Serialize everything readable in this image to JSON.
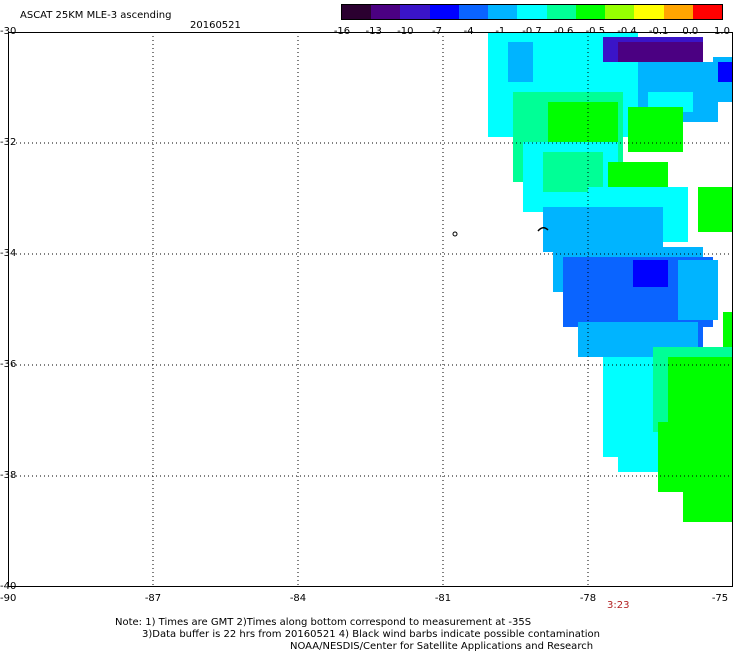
{
  "header": {
    "title": "ASCAT 25KM MLE-3 ascending",
    "date": "20160521"
  },
  "colorbar": {
    "labels": [
      "-16",
      "-13",
      "-10",
      "-7",
      "-4",
      "-1",
      "-0.7",
      "-0.6",
      "-0.5",
      "-0.4",
      "-0.1",
      "0.0",
      "1.0"
    ],
    "colors": [
      "#2b0030",
      "#4b0082",
      "#3a14c8",
      "#0000ff",
      "#0a64ff",
      "#00b4ff",
      "#00ffff",
      "#00ff96",
      "#00ff00",
      "#96ff00",
      "#ffff00",
      "#ffa500",
      "#ff0000"
    ]
  },
  "map": {
    "lat_labels": [
      "-30",
      "-32",
      "-34",
      "-36",
      "-38",
      "-40"
    ],
    "lon_labels": [
      "-90",
      "-87",
      "-84",
      "-81",
      "-78",
      "-75"
    ],
    "lat_range": [
      -40,
      -30
    ],
    "lon_range": [
      -90,
      -75
    ],
    "time_label": "3:23",
    "time_color": "#b22222"
  },
  "notes": {
    "line1": "Note: 1) Times are GMT 2)Times along bottom correspond to measurement at -35S",
    "line2": "3)Data buffer is 22 hrs from 20160521 4) Black wind barbs indicate possible contamination",
    "line3": "NOAA/NESDIS/Center for Satellite Applications and Research"
  }
}
